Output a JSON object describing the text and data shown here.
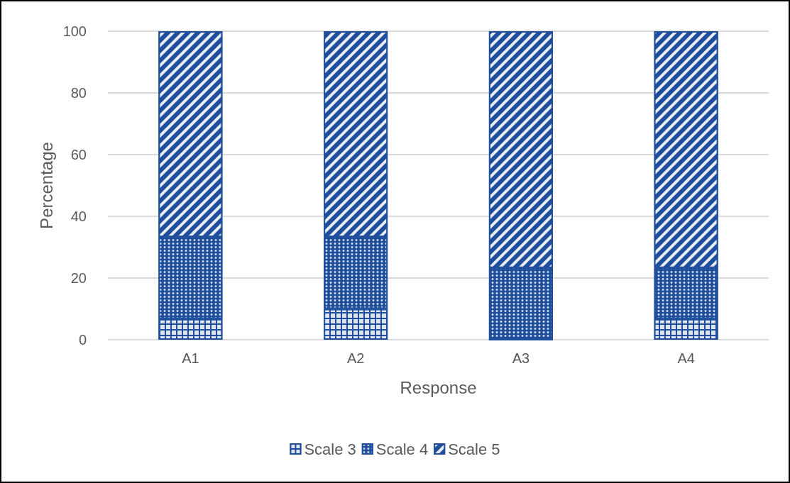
{
  "chart_data": {
    "type": "bar",
    "stacked": true,
    "xlabel": "Response",
    "ylabel": "Percentage",
    "categories": [
      "A1",
      "A2",
      "A3",
      "A4"
    ],
    "series": [
      {
        "name": "Scale 3",
        "color": "#1f4e9c",
        "values": [
          6.7,
          10,
          0,
          6.7
        ]
      },
      {
        "name": "Scale 4",
        "color": "#1f4e9c",
        "values": [
          26.6,
          23.3,
          23.3,
          16.6
        ]
      },
      {
        "name": "Scale 5",
        "color": "#1f4e9c",
        "values": [
          66.7,
          66.7,
          76.7,
          76.7
        ]
      }
    ],
    "ylim": [
      0,
      100
    ],
    "yticks": [
      0,
      20,
      40,
      60,
      80,
      100
    ],
    "grid": "y",
    "legend": "bottom"
  }
}
